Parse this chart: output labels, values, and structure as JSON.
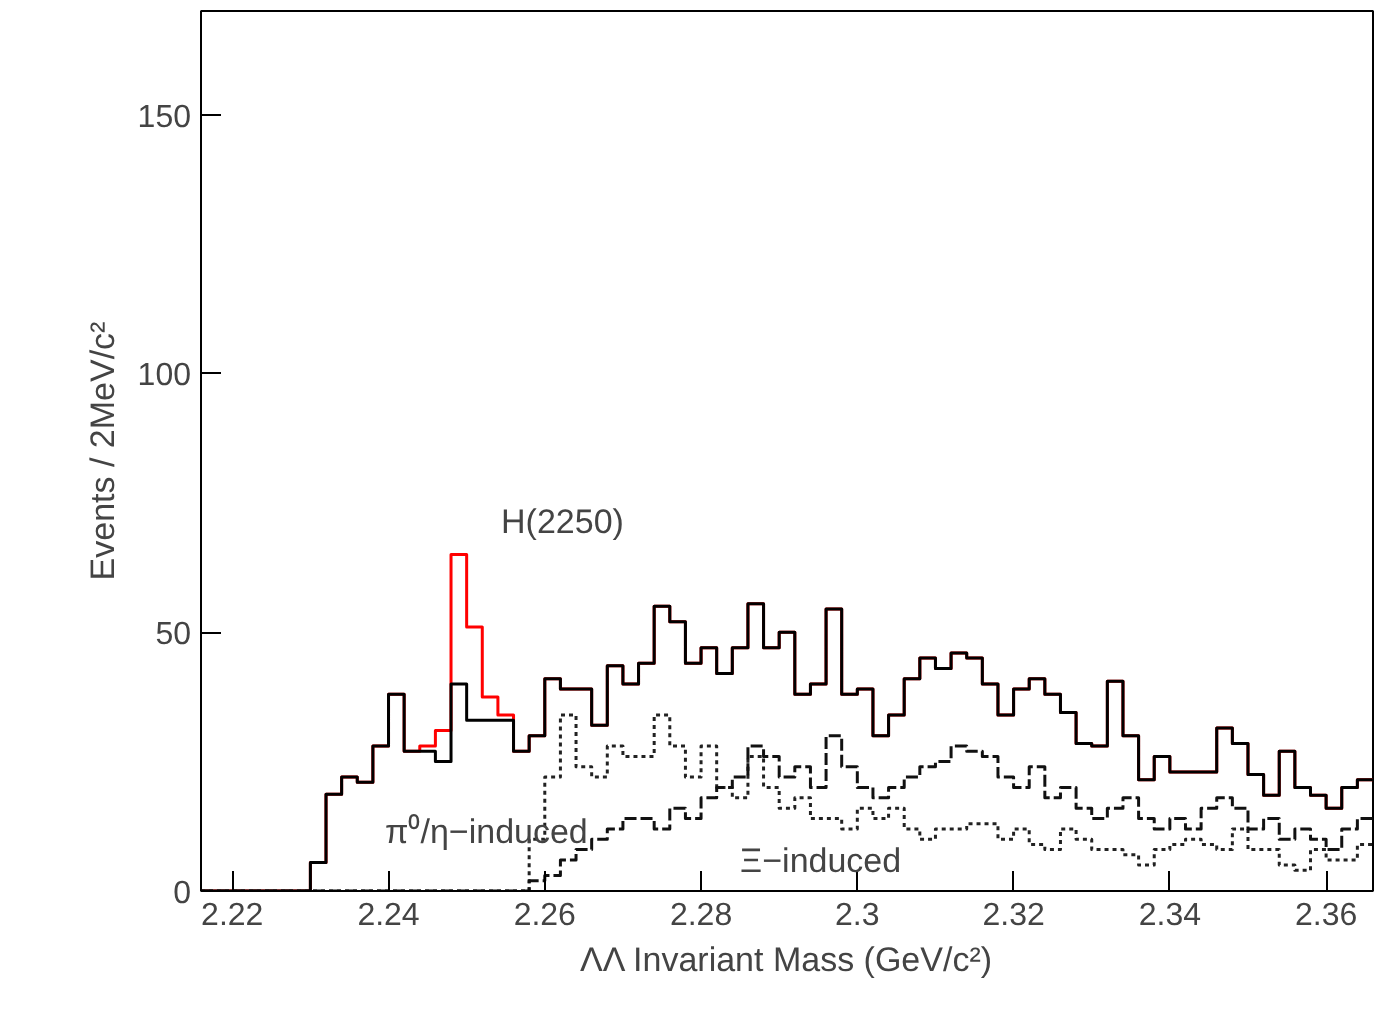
{
  "chart_data": {
    "type": "histogram",
    "xlabel": "ΛΛ Invariant Mass (GeV/c²)",
    "ylabel": "Events / 2MeV/c²",
    "bins": [
      2.216,
      2.218,
      2.22,
      2.222,
      2.224,
      2.226,
      2.228,
      2.23,
      2.232,
      2.234,
      2.236,
      2.238,
      2.24,
      2.242,
      2.244,
      2.246,
      2.248,
      2.25,
      2.252,
      2.254,
      2.256,
      2.258,
      2.26,
      2.262,
      2.264,
      2.266,
      2.268,
      2.27,
      2.272,
      2.274,
      2.276,
      2.278,
      2.28,
      2.282,
      2.284,
      2.286,
      2.288,
      2.29,
      2.292,
      2.294,
      2.296,
      2.298,
      2.3,
      2.302,
      2.304,
      2.306,
      2.308,
      2.31,
      2.312,
      2.314,
      2.316,
      2.318,
      2.32,
      2.322,
      2.324,
      2.326,
      2.328,
      2.33,
      2.332,
      2.334,
      2.336,
      2.338,
      2.34,
      2.342,
      2.344,
      2.346,
      2.348,
      2.35,
      2.352,
      2.354,
      2.356,
      2.358,
      2.36,
      2.362,
      2.364,
      2.366
    ],
    "series": [
      {
        "color": "#ff0000",
        "line_style": "solid",
        "values": [
          0,
          0,
          0,
          0,
          0,
          0,
          0,
          5.5,
          18.7,
          22,
          21,
          28,
          38,
          27,
          28,
          31,
          65,
          51,
          37.5,
          34,
          27,
          30,
          41,
          39,
          39,
          32,
          43.5,
          40,
          44,
          55,
          52,
          44,
          47,
          42,
          47,
          55.5,
          47,
          50,
          38,
          40,
          54.5,
          38,
          39,
          30,
          34,
          41,
          45,
          43,
          46,
          45,
          40,
          34,
          39,
          41,
          38,
          34.5,
          28.5,
          28,
          40.5,
          30,
          21.5,
          26,
          23,
          23,
          23,
          31.5,
          28.5,
          22.5,
          18.5,
          27,
          20,
          18.5,
          16,
          20,
          21.5
        ]
      },
      {
        "color": "#000000",
        "line_style": "solid",
        "values": [
          0,
          0,
          0,
          0,
          0,
          0,
          0,
          5.5,
          18.7,
          22,
          21,
          28,
          38,
          27,
          27,
          25,
          40,
          33,
          33,
          33,
          27,
          30,
          41,
          39,
          39,
          32,
          43.5,
          40,
          44,
          55,
          52,
          44,
          47,
          42,
          47,
          55.5,
          47,
          50,
          38,
          40,
          54.5,
          38,
          39,
          30,
          34,
          41,
          45,
          43,
          46,
          45,
          40,
          34,
          39,
          41,
          38,
          34.5,
          28.5,
          28,
          40.5,
          30,
          21.5,
          26,
          23,
          23,
          23,
          31.5,
          28.5,
          22.5,
          18.5,
          27,
          20,
          18.5,
          16,
          20,
          21.5
        ]
      },
      {
        "color": "#222222",
        "line_style": "dotted",
        "values": [
          0,
          0,
          0,
          0,
          0,
          0,
          0,
          0,
          0,
          0,
          0,
          0,
          0,
          0,
          0,
          0,
          0,
          0,
          0,
          0,
          0,
          10,
          22,
          34,
          24,
          22,
          28,
          26,
          26,
          34,
          28,
          22,
          28,
          20,
          18,
          26,
          20,
          16,
          18,
          14,
          14,
          12,
          16,
          14,
          16,
          12,
          10,
          12,
          12,
          13,
          13,
          10,
          12,
          9,
          8,
          12,
          10,
          8,
          8,
          7,
          5,
          8,
          9,
          10,
          9,
          8,
          12,
          8,
          8,
          5,
          4,
          8,
          6,
          6,
          9
        ]
      },
      {
        "color": "#111111",
        "line_style": "dashed",
        "values": [
          0,
          0,
          0,
          0,
          0,
          0,
          0,
          0,
          0,
          0,
          0,
          0,
          0,
          0,
          0,
          0,
          0,
          0,
          0,
          0,
          0,
          2,
          3,
          6,
          8,
          10,
          12,
          14,
          14,
          12,
          16,
          14,
          18,
          20,
          22,
          28,
          26,
          22,
          24,
          20,
          30,
          24,
          20,
          18,
          20,
          22,
          24,
          25,
          28,
          27,
          26,
          22,
          20,
          24,
          18,
          20,
          16,
          14,
          16,
          18,
          14,
          12,
          14,
          12,
          16,
          18,
          16,
          12,
          14,
          10,
          12,
          10,
          8,
          12,
          14
        ]
      }
    ],
    "xlim": [
      2.216,
      2.366
    ],
    "ylim": [
      0,
      170
    ],
    "xticks": [
      2.22,
      2.24,
      2.26,
      2.28,
      2.3,
      2.32,
      2.34,
      2.36
    ],
    "yticks": [
      0,
      50,
      100,
      150
    ],
    "grid": false,
    "annotations": [
      "H(2250)",
      "π⁰/η−induced",
      "Ξ−induced"
    ]
  }
}
